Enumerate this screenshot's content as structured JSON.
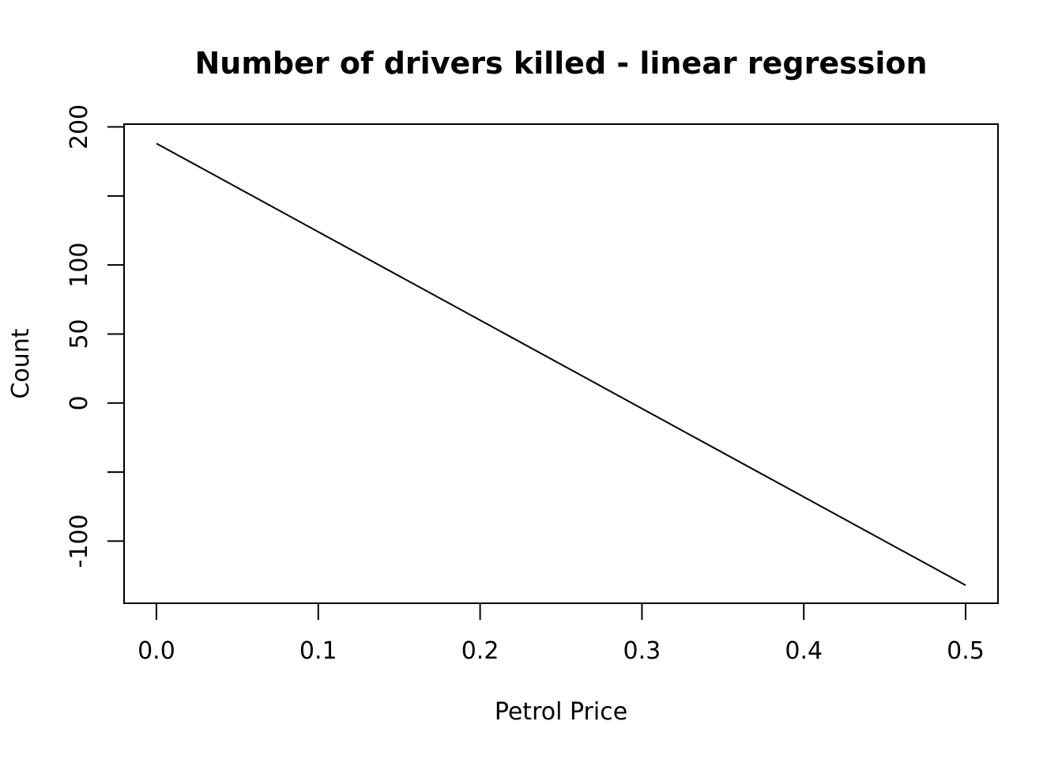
{
  "chart_data": {
    "type": "line",
    "title": "Number of drivers killed - linear regression",
    "xlabel": "Petrol Price",
    "ylabel": "Count",
    "xlim": [
      -0.02,
      0.52
    ],
    "ylim": [
      -145,
      202
    ],
    "x_ticks": [
      0.0,
      0.1,
      0.2,
      0.3,
      0.4,
      0.5
    ],
    "x_tick_labels": [
      "0.0",
      "0.1",
      "0.2",
      "0.3",
      "0.4",
      "0.5"
    ],
    "y_ticks": [
      200,
      150,
      100,
      50,
      0,
      -50,
      -100
    ],
    "y_tick_labels": [
      "200",
      "",
      "100",
      "50",
      "0",
      "",
      "-100"
    ],
    "grid": false,
    "series": [
      {
        "x": [
          0.0,
          0.5
        ],
        "y": [
          188,
          -132
        ],
        "color": "#000000"
      }
    ]
  }
}
